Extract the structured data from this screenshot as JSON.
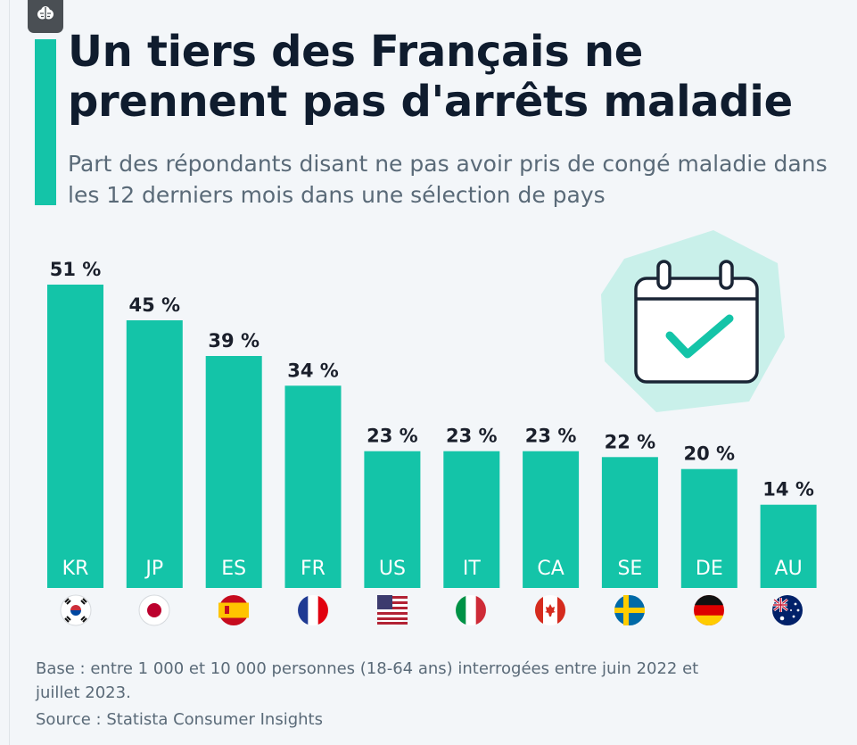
{
  "header": {
    "title": "Un tiers des Français ne prennent pas d'arrêts maladie",
    "subtitle": "Part des répondants disant ne pas avoir pris de congé maladie dans les 12 derniers mois dans une sélection de pays"
  },
  "footer": {
    "note": "Base : entre 1 000 et 10 000 personnes (18-64 ans) interrogées entre juin 2022 et juillet 2023.",
    "source": "Source : Statista Consumer Insights"
  },
  "icons": {
    "brand": "brain-icon",
    "illustration": "calendar-check-icon"
  },
  "colors": {
    "bar": "#14c4a8",
    "accent": "#14c4a8",
    "title": "#0f1c2e",
    "subtitle": "#5a6a78",
    "illustration_bg": "#c9f0ea",
    "illustration_stroke": "#1a2535"
  },
  "chart_data": {
    "type": "bar",
    "title": "Un tiers des Français ne prennent pas d'arrêts maladie",
    "subtitle": "Part des répondants disant ne pas avoir pris de congé maladie dans les 12 derniers mois dans une sélection de pays",
    "categories": [
      "KR",
      "JP",
      "ES",
      "FR",
      "US",
      "IT",
      "CA",
      "SE",
      "DE",
      "AU"
    ],
    "values": [
      51,
      45,
      39,
      34,
      23,
      23,
      23,
      22,
      20,
      14
    ],
    "value_labels": [
      "51 %",
      "45 %",
      "39 %",
      "34 %",
      "23 %",
      "23 %",
      "23 %",
      "22 %",
      "20 %",
      "14 %"
    ],
    "flags": [
      "south-korea-flag-icon",
      "japan-flag-icon",
      "spain-flag-icon",
      "france-flag-icon",
      "usa-flag-icon",
      "italy-flag-icon",
      "canada-flag-icon",
      "sweden-flag-icon",
      "germany-flag-icon",
      "australia-flag-icon"
    ],
    "unit": "%",
    "ylim": [
      0,
      51
    ],
    "grid": false,
    "xlabel": "",
    "ylabel": ""
  }
}
